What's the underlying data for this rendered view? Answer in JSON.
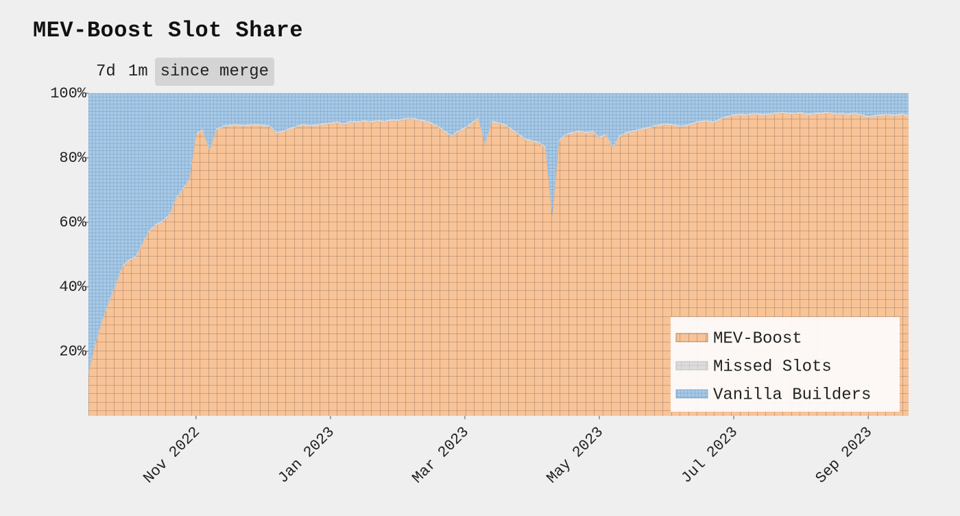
{
  "controls": [
    "7d",
    "1m",
    "since merge"
  ],
  "active_control": 2,
  "chart_data": {
    "type": "stacked-area",
    "title": "MEV-Boost Slot Share",
    "categories": [
      null,
      null,
      null,
      null,
      null,
      null,
      null,
      null,
      null,
      null,
      null,
      null,
      null,
      null,
      null,
      null,
      "Nov 2022",
      null,
      null,
      null,
      null,
      null,
      null,
      null,
      null,
      null,
      null,
      null,
      null,
      null,
      null,
      null,
      null,
      null,
      null,
      null,
      "Jan 2023",
      null,
      null,
      null,
      null,
      null,
      null,
      null,
      null,
      null,
      null,
      null,
      null,
      null,
      null,
      null,
      null,
      null,
      null,
      null,
      "Mar 2023",
      null,
      null,
      null,
      null,
      null,
      null,
      null,
      null,
      null,
      null,
      null,
      null,
      null,
      null,
      null,
      null,
      null,
      null,
      null,
      "May 2023",
      null,
      null,
      null,
      null,
      null,
      null,
      null,
      null,
      null,
      null,
      null,
      null,
      null,
      null,
      null,
      null,
      null,
      null,
      null,
      "Jul 2023",
      null,
      null,
      null,
      null,
      null,
      null,
      null,
      null,
      null,
      null,
      null,
      null,
      null,
      null,
      null,
      null,
      null,
      null,
      null,
      "Sep 2023",
      null,
      null,
      null,
      null,
      null,
      null
    ],
    "series": [
      {
        "name": "MEV-Boost",
        "color": "#f8c397",
        "values": [
          13,
          22,
          29,
          35,
          40,
          46,
          48,
          49,
          53,
          57,
          59,
          60,
          62,
          67,
          70,
          73,
          87,
          88.5,
          82,
          88.5,
          89.5,
          89.8,
          90,
          89.7,
          89.9,
          90,
          89.8,
          89.5,
          87.5,
          88,
          88.8,
          89.5,
          90,
          89.7,
          89.9,
          90.3,
          90.5,
          90.8,
          90.2,
          91,
          90.8,
          91.2,
          90.9,
          91.3,
          91,
          91.5,
          91.4,
          91.8,
          92,
          91.6,
          91.2,
          90.5,
          89.5,
          88,
          86.5,
          88,
          89,
          90.5,
          92,
          84,
          91,
          90.5,
          90,
          88.5,
          87,
          85.5,
          85,
          84.5,
          83,
          62,
          85,
          87,
          87.5,
          88,
          87.5,
          88,
          86,
          87,
          83,
          86.5,
          87.5,
          88,
          88.5,
          89,
          89.5,
          90,
          90.2,
          90,
          89.5,
          89.8,
          90.5,
          91,
          91.2,
          90.8,
          91.8,
          92.5,
          93,
          93.2,
          93,
          93.5,
          93.2,
          93.3,
          93.5,
          93.8,
          93.6,
          93.5,
          93.7,
          93.2,
          93.5,
          93.6,
          93.8,
          93.4,
          93.5,
          93.2,
          93.6,
          93,
          92.5,
          92.8,
          93,
          93.1,
          92.9,
          93.3,
          92.8
        ]
      },
      {
        "name": "Missed Slots",
        "color": "#dcdcdc",
        "values": [
          0.5,
          0.5,
          0.5,
          0.5,
          0.5,
          0.5,
          0.5,
          0.5,
          0.5,
          0.5,
          0.5,
          0.5,
          0.5,
          0.5,
          0.5,
          0.5,
          0.5,
          0.5,
          0.5,
          0.5,
          0.5,
          0.5,
          0.5,
          0.5,
          0.5,
          0.5,
          0.5,
          0.5,
          0.5,
          0.5,
          0.5,
          0.5,
          0.5,
          0.5,
          0.5,
          0.5,
          0.5,
          0.5,
          0.5,
          0.5,
          0.5,
          0.5,
          0.5,
          0.5,
          0.5,
          0.5,
          0.5,
          0.5,
          0.5,
          0.5,
          0.5,
          0.5,
          0.5,
          0.5,
          0.5,
          0.5,
          0.5,
          0.5,
          0.5,
          0.5,
          0.5,
          0.5,
          0.5,
          0.5,
          0.5,
          0.5,
          0.5,
          0.5,
          0.5,
          0.5,
          0.5,
          0.5,
          0.5,
          0.5,
          0.5,
          0.5,
          0.5,
          0.5,
          0.5,
          0.5,
          0.5,
          0.5,
          0.5,
          0.5,
          0.5,
          0.5,
          0.5,
          0.5,
          0.5,
          0.5,
          0.5,
          0.5,
          0.5,
          0.5,
          0.5,
          0.5,
          0.5,
          0.5,
          0.5,
          0.5,
          0.5,
          0.5,
          0.5,
          0.5,
          0.5,
          0.5,
          0.5,
          0.5,
          0.5,
          0.5,
          0.5,
          0.5,
          0.5,
          0.5,
          0.5,
          0.5,
          0.5,
          0.5,
          0.5,
          0.5,
          0.5,
          0.5,
          0.5
        ]
      },
      {
        "name": "Vanilla Builders",
        "color": "#a8c9e6",
        "values": [
          86.5,
          77.5,
          70.5,
          64.5,
          59.5,
          53.5,
          51.5,
          50.5,
          46.5,
          42.5,
          40.5,
          39.5,
          37.5,
          32.5,
          29.5,
          26.5,
          12.5,
          11,
          17.5,
          11,
          10,
          9.7,
          9.5,
          9.8,
          9.6,
          9.5,
          9.7,
          10,
          12,
          11.5,
          10.7,
          10,
          9.5,
          9.8,
          9.6,
          9.2,
          9,
          8.7,
          9.3,
          8.5,
          8.7,
          8.3,
          8.6,
          8.2,
          8.5,
          8,
          8.1,
          7.7,
          7.5,
          7.9,
          8.3,
          9,
          10,
          11.5,
          13,
          11.5,
          10.5,
          9,
          7.5,
          15.5,
          8.5,
          9,
          9.5,
          11,
          12.5,
          14,
          14.5,
          15,
          16.5,
          37.5,
          14.5,
          12.5,
          12,
          11.5,
          12,
          11.5,
          13.5,
          12.5,
          16.5,
          13,
          12,
          11.5,
          11,
          10.5,
          10,
          9.5,
          9.3,
          9.5,
          10,
          9.7,
          9,
          8.5,
          8.3,
          8.7,
          7.7,
          7,
          6.5,
          6.3,
          6.5,
          6,
          6.3,
          6.2,
          6,
          5.7,
          5.9,
          6,
          5.8,
          6.3,
          6,
          5.9,
          5.7,
          6.1,
          6,
          6.3,
          5.9,
          6.5,
          7,
          6.7,
          6.5,
          6.4,
          6.6,
          6.2,
          6.7
        ]
      }
    ],
    "ylim": [
      0,
      100
    ],
    "yticks": [
      {
        "value": 20,
        "label": "20%"
      },
      {
        "value": 40,
        "label": "40%"
      },
      {
        "value": 60,
        "label": "60%"
      },
      {
        "value": 80,
        "label": "80%"
      },
      {
        "value": 100,
        "label": "100%"
      }
    ],
    "legend": "lower right",
    "hatch": true
  }
}
